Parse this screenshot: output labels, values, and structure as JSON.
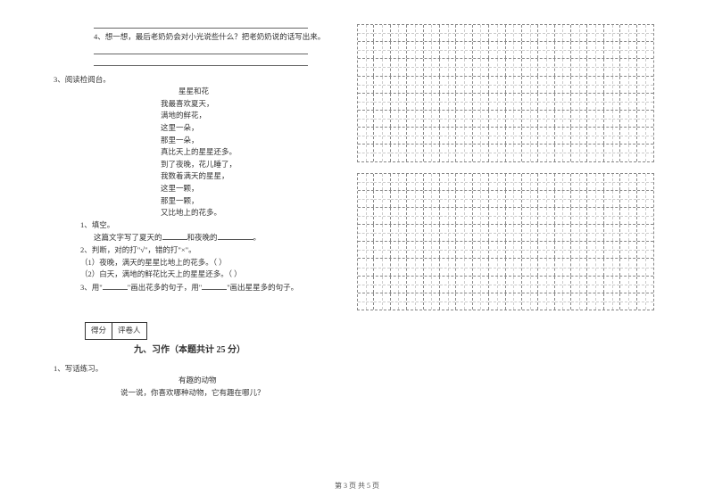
{
  "question4": {
    "text": "4、想一想，最后老奶奶会对小光说些什么？把老奶奶说的话写出来。"
  },
  "question3": {
    "label": "3、阅读检阅台。",
    "poem": {
      "title": "星星和花",
      "lines": [
        "我最喜欢夏天，",
        "满地的鲜花，",
        "这里一朵，",
        "那里一朵，",
        "真比天上的星星还多。",
        "到了夜晚，花儿睡了，",
        "我数着满天的星星，",
        "这里一颗，",
        "那里一颗，",
        "又比地上的花多。"
      ]
    },
    "sub1": {
      "label": "1、填空。",
      "text_before": "这篇文字写了夏天的",
      "text_mid": "和夜晚的",
      "text_after": "。"
    },
    "sub2": {
      "label": "2、判断，对的打\"√\"，错的打\"×\"。",
      "item1": "（1）夜晚，满天的星星比地上的花多。（    ）",
      "item2": "（2）白天，满地的鲜花比天上的星星还多。（    ）"
    },
    "sub3": {
      "text_a": "3、用\"",
      "text_b": "\"画出花多的句子，用\"",
      "text_c": "\"画出星星多的句子。"
    }
  },
  "score": {
    "col1": "得分",
    "col2": "评卷人"
  },
  "section9": {
    "title": "九、习作（本题共计 25 分）",
    "q1": "1、写话练习。",
    "subtitle": "有趣的动物",
    "prompt": "说一说，你喜欢哪种动物，它有趣在哪儿？"
  },
  "pageNum": "第 3 页 共 5 页",
  "grid": {
    "rows": 8,
    "cols": 18
  },
  "style": {
    "bg": "#ffffff",
    "text": "#333333"
  }
}
